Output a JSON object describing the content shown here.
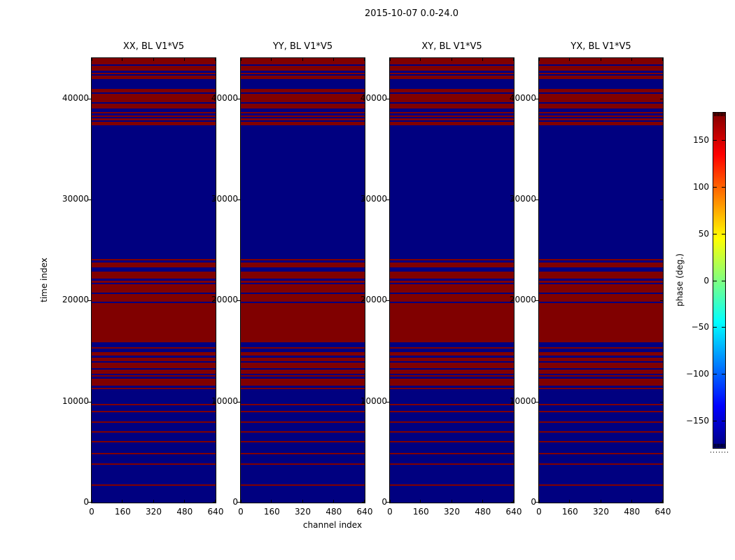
{
  "figure": {
    "title": "2015-10-07 0.0-24.0",
    "xlabel": "channel index",
    "ylabel": "time index",
    "colorbar_label": "phase (deg.)"
  },
  "panels": [
    {
      "title": "XX, BL V1*V5"
    },
    {
      "title": "YY, BL V1*V5"
    },
    {
      "title": "XY, BL V1*V5"
    },
    {
      "title": "YX, BL V1*V5"
    }
  ],
  "colors": {
    "phase_positive_red": "#800000",
    "phase_negative_blue": "#000080",
    "jet_top_to_bottom": [
      "#800000",
      "#ff0000",
      "#ffff00",
      "#00ffff",
      "#0000ff",
      "#000080"
    ],
    "background": "#ffffff",
    "axis_black": "#000000"
  },
  "chart_data": {
    "type": "heatmap",
    "title": "2015-10-07 0.0-24.0",
    "panels": [
      "XX, BL V1*V5",
      "YY, BL V1*V5",
      "XY, BL V1*V5",
      "YX, BL V1*V5"
    ],
    "xlabel": "channel index",
    "ylabel": "time index",
    "colorbar_label": "phase (deg.)",
    "colormap": "jet",
    "x_range": [
      0,
      640
    ],
    "y_range": [
      0,
      44000
    ],
    "x_ticks": [
      0,
      160,
      320,
      480,
      640
    ],
    "y_ticks": [
      0,
      10000,
      20000,
      30000,
      40000
    ],
    "colorbar_ticks": [
      150,
      100,
      50,
      0,
      -50,
      -100,
      -150
    ],
    "phase_range_deg": [
      -180,
      180
    ],
    "background_phase_deg": -180,
    "band_phase_deg": 180,
    "red_time_bands": [
      [
        43380,
        44000
      ],
      [
        42750,
        43240
      ],
      [
        42400,
        42540
      ],
      [
        41920,
        42270
      ],
      [
        40610,
        40950
      ],
      [
        39640,
        40470
      ],
      [
        39010,
        39490
      ],
      [
        38520,
        38660
      ],
      [
        38180,
        38320
      ],
      [
        37830,
        38040
      ],
      [
        37350,
        37700
      ],
      [
        23970,
        24110
      ],
      [
        23280,
        23770
      ],
      [
        22170,
        22870
      ],
      [
        21760,
        21960
      ],
      [
        20790,
        21620
      ],
      [
        19890,
        20650
      ],
      [
        15870,
        19750
      ],
      [
        15240,
        15380
      ],
      [
        14550,
        14900
      ],
      [
        14000,
        14340
      ],
      [
        13300,
        13860
      ],
      [
        12750,
        13170
      ],
      [
        12470,
        12610
      ],
      [
        11570,
        12260
      ],
      [
        11230,
        11360
      ],
      [
        9630,
        9770
      ],
      [
        8940,
        9080
      ],
      [
        7900,
        8040
      ],
      [
        6930,
        7070
      ],
      [
        5960,
        6100
      ],
      [
        4780,
        4920
      ],
      [
        3740,
        3880
      ],
      [
        1660,
        1800
      ]
    ]
  }
}
